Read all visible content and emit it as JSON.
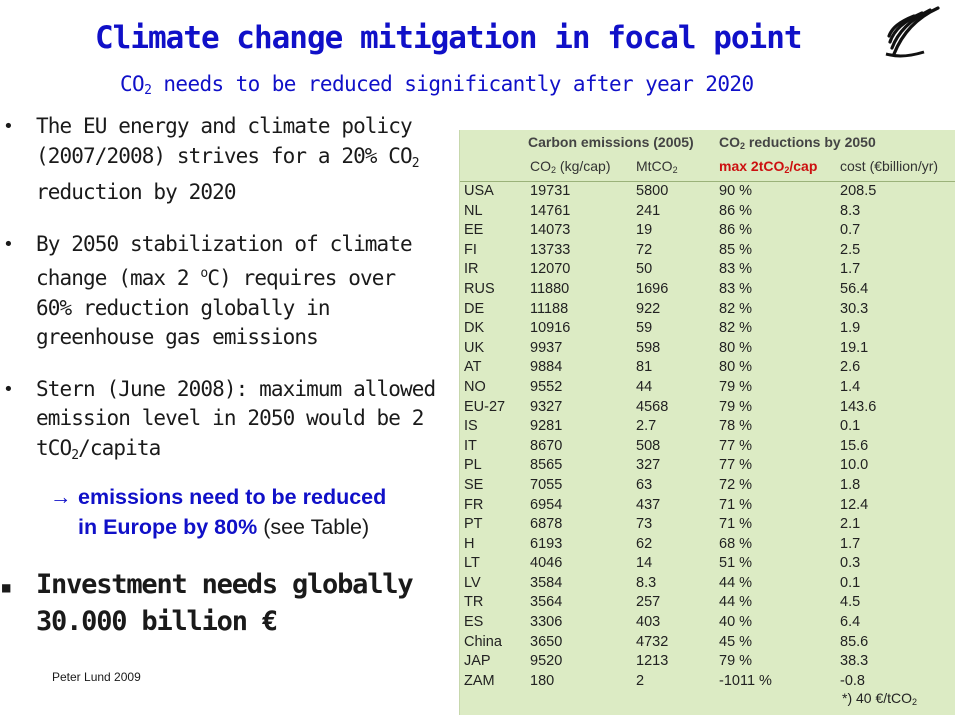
{
  "title": "Climate change mitigation in focal point",
  "subtitle": {
    "pre": "CO",
    "sub": "2",
    "post": " needs to be reduced significantly after year 2020"
  },
  "bullets": [
    {
      "parts": [
        "The EU energy and climate policy (2007/2008) strives for a 20% CO",
        "2",
        " reduction by 2020"
      ]
    },
    {
      "parts": [
        "By 2050 stabilization of climate change  (max 2 ",
        "o",
        "C) requires over 60% reduction globally in greenhouse gas emissions"
      ]
    },
    {
      "parts": [
        "Stern (June 2008): maximum allowed emission level in 2050 would be 2 tCO",
        "2",
        "/capita"
      ]
    }
  ],
  "emphasis": {
    "arrow": "→",
    "bold_line1": "emissions need to be reduced",
    "bold_line2": "in Europe by 80%",
    "rest": " (see Table)"
  },
  "investment": {
    "line1": "Investment needs globally",
    "line2": "30.000 billion €"
  },
  "footer": "Peter Lund 2009",
  "table": {
    "group1": "Carbon emissions (2005)",
    "group2_pre": "CO",
    "group2_sub": "2",
    "group2_post": " reductions by 2050",
    "col1_pre": "CO",
    "col1_sub": "2",
    "col1_post": " (kg/cap)",
    "col2_pre": "MtCO",
    "col2_sub": "2",
    "col3_pre": "max 2tCO",
    "col3_sub": "2",
    "col3_post": "/cap",
    "col4": "cost (€billion/yr)",
    "note_pre": "*) 40 €/tCO",
    "note_sub": "2",
    "rows": [
      [
        "USA",
        "19731",
        "5800",
        "90 %",
        "208.5"
      ],
      [
        "NL",
        "14761",
        "241",
        "86 %",
        "8.3"
      ],
      [
        "EE",
        "14073",
        "19",
        "86 %",
        "0.7"
      ],
      [
        "FI",
        "13733",
        "72",
        "85 %",
        "2.5"
      ],
      [
        "IR",
        "12070",
        "50",
        "83 %",
        "1.7"
      ],
      [
        "RUS",
        "11880",
        "1696",
        "83 %",
        "56.4"
      ],
      [
        "DE",
        "11188",
        "922",
        "82 %",
        "30.3"
      ],
      [
        "DK",
        "10916",
        "59",
        "82 %",
        "1.9"
      ],
      [
        "UK",
        "9937",
        "598",
        "80 %",
        "19.1"
      ],
      [
        "AT",
        "9884",
        "81",
        "80 %",
        "2.6"
      ],
      [
        "NO",
        "9552",
        "44",
        "79 %",
        "1.4"
      ],
      [
        "EU-27",
        "9327",
        "4568",
        "79 %",
        "143.6"
      ],
      [
        "IS",
        "9281",
        "2.7",
        "78 %",
        "0.1"
      ],
      [
        "IT",
        "8670",
        "508",
        "77 %",
        "15.6"
      ],
      [
        "PL",
        "8565",
        "327",
        "77 %",
        "10.0"
      ],
      [
        "SE",
        "7055",
        "63",
        "72 %",
        "1.8"
      ],
      [
        "FR",
        "6954",
        "437",
        "71 %",
        "12.4"
      ],
      [
        "PT",
        "6878",
        "73",
        "71 %",
        "2.1"
      ],
      [
        "H",
        "6193",
        "62",
        "68 %",
        "1.7"
      ],
      [
        "LT",
        "4046",
        "14",
        "51 %",
        "0.3"
      ],
      [
        "LV",
        "3584",
        "8.3",
        "44 %",
        "0.1"
      ],
      [
        "TR",
        "3564",
        "257",
        "44 %",
        "4.5"
      ],
      [
        "ES",
        "3306",
        "403",
        "40 %",
        "6.4"
      ],
      [
        "China",
        "3650",
        "4732",
        "45 %",
        "85.6"
      ],
      [
        "JAP",
        "9520",
        "1213",
        "79 %",
        "38.3"
      ],
      [
        "ZAM",
        "180",
        "2",
        "-1011 %",
        "-0.8"
      ]
    ]
  }
}
